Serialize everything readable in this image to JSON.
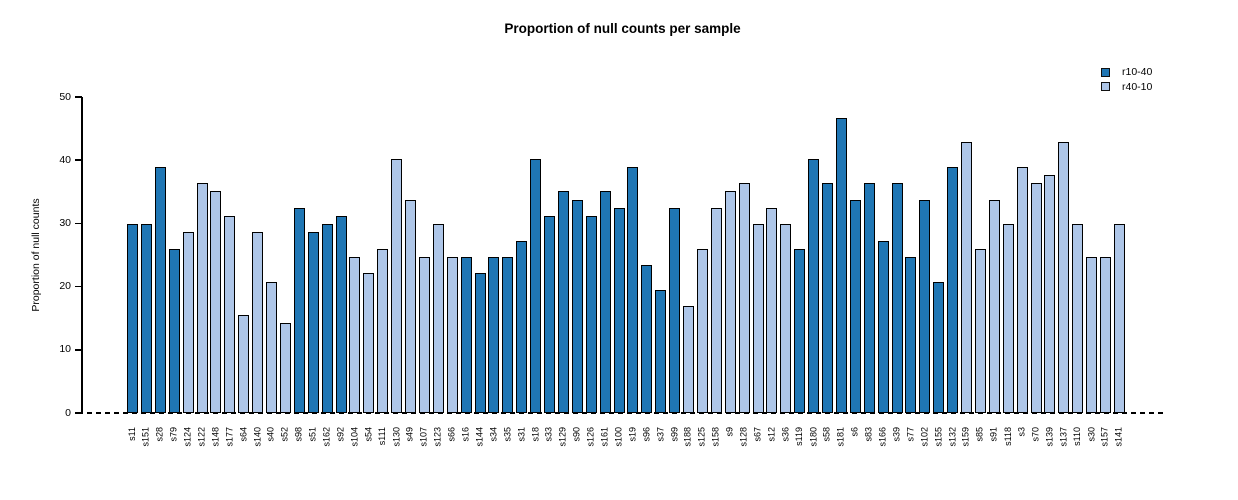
{
  "chart_data": {
    "type": "bar",
    "title": "Proportion of null counts per sample",
    "xlabel": "",
    "ylabel": "Proportion of null counts",
    "ylim": [
      0,
      50
    ],
    "yticks": [
      0,
      10,
      20,
      30,
      40,
      50
    ],
    "grid": false,
    "legend_position": "top-right",
    "zero_line_style": "dashed",
    "legend": [
      {
        "name": "r10-40",
        "color": "#1f76b4"
      },
      {
        "name": "r40-10",
        "color": "#aec6e8"
      }
    ],
    "bars": [
      {
        "label": "s11",
        "value": 29.87,
        "series": "r10-40"
      },
      {
        "label": "s151",
        "value": 29.87,
        "series": "r10-40"
      },
      {
        "label": "s28",
        "value": 38.96,
        "series": "r10-40"
      },
      {
        "label": "s79",
        "value": 25.97,
        "series": "r10-40"
      },
      {
        "label": "s124",
        "value": 28.57,
        "series": "r40-10"
      },
      {
        "label": "s122",
        "value": 36.36,
        "series": "r40-10"
      },
      {
        "label": "s148",
        "value": 35.06,
        "series": "r40-10"
      },
      {
        "label": "s177",
        "value": 31.17,
        "series": "r40-10"
      },
      {
        "label": "s64",
        "value": 15.58,
        "series": "r40-10"
      },
      {
        "label": "s140",
        "value": 28.57,
        "series": "r40-10"
      },
      {
        "label": "s40",
        "value": 20.78,
        "series": "r40-10"
      },
      {
        "label": "s52",
        "value": 14.29,
        "series": "r40-10"
      },
      {
        "label": "s98",
        "value": 32.47,
        "series": "r10-40"
      },
      {
        "label": "s51",
        "value": 28.57,
        "series": "r10-40"
      },
      {
        "label": "s162",
        "value": 29.87,
        "series": "r10-40"
      },
      {
        "label": "s92",
        "value": 31.17,
        "series": "r10-40"
      },
      {
        "label": "s104",
        "value": 24.68,
        "series": "r40-10"
      },
      {
        "label": "s54",
        "value": 22.08,
        "series": "r40-10"
      },
      {
        "label": "s111",
        "value": 25.97,
        "series": "r40-10"
      },
      {
        "label": "s130",
        "value": 40.26,
        "series": "r40-10"
      },
      {
        "label": "s49",
        "value": 33.77,
        "series": "r40-10"
      },
      {
        "label": "s107",
        "value": 24.68,
        "series": "r40-10"
      },
      {
        "label": "s123",
        "value": 29.87,
        "series": "r40-10"
      },
      {
        "label": "s66",
        "value": 24.68,
        "series": "r40-10"
      },
      {
        "label": "s16",
        "value": 24.68,
        "series": "r10-40"
      },
      {
        "label": "s144",
        "value": 22.08,
        "series": "r10-40"
      },
      {
        "label": "s34",
        "value": 24.68,
        "series": "r10-40"
      },
      {
        "label": "s35",
        "value": 24.68,
        "series": "r10-40"
      },
      {
        "label": "s31",
        "value": 27.27,
        "series": "r10-40"
      },
      {
        "label": "s18",
        "value": 40.26,
        "series": "r10-40"
      },
      {
        "label": "s33",
        "value": 31.17,
        "series": "r10-40"
      },
      {
        "label": "s129",
        "value": 35.06,
        "series": "r10-40"
      },
      {
        "label": "s90",
        "value": 33.77,
        "series": "r10-40"
      },
      {
        "label": "s126",
        "value": 31.17,
        "series": "r10-40"
      },
      {
        "label": "s161",
        "value": 35.06,
        "series": "r10-40"
      },
      {
        "label": "s100",
        "value": 32.47,
        "series": "r10-40"
      },
      {
        "label": "s19",
        "value": 38.96,
        "series": "r10-40"
      },
      {
        "label": "s96",
        "value": 23.38,
        "series": "r10-40"
      },
      {
        "label": "s37",
        "value": 19.48,
        "series": "r10-40"
      },
      {
        "label": "s99",
        "value": 32.47,
        "series": "r10-40"
      },
      {
        "label": "s188",
        "value": 16.88,
        "series": "r40-10"
      },
      {
        "label": "s125",
        "value": 25.97,
        "series": "r40-10"
      },
      {
        "label": "s158",
        "value": 32.47,
        "series": "r40-10"
      },
      {
        "label": "s9",
        "value": 35.06,
        "series": "r40-10"
      },
      {
        "label": "s128",
        "value": 36.36,
        "series": "r40-10"
      },
      {
        "label": "s67",
        "value": 29.87,
        "series": "r40-10"
      },
      {
        "label": "s12",
        "value": 32.47,
        "series": "r40-10"
      },
      {
        "label": "s36",
        "value": 29.87,
        "series": "r40-10"
      },
      {
        "label": "s119",
        "value": 25.97,
        "series": "r10-40"
      },
      {
        "label": "s180",
        "value": 40.26,
        "series": "r10-40"
      },
      {
        "label": "s58",
        "value": 36.36,
        "series": "r10-40"
      },
      {
        "label": "s181",
        "value": 46.75,
        "series": "r10-40"
      },
      {
        "label": "s6",
        "value": 33.77,
        "series": "r10-40"
      },
      {
        "label": "s83",
        "value": 36.36,
        "series": "r10-40"
      },
      {
        "label": "s166",
        "value": 27.27,
        "series": "r10-40"
      },
      {
        "label": "s39",
        "value": 36.36,
        "series": "r10-40"
      },
      {
        "label": "s77",
        "value": 24.68,
        "series": "r10-40"
      },
      {
        "label": "s102",
        "value": 33.77,
        "series": "r10-40"
      },
      {
        "label": "s155",
        "value": 20.78,
        "series": "r10-40"
      },
      {
        "label": "s132",
        "value": 38.96,
        "series": "r10-40"
      },
      {
        "label": "s159",
        "value": 42.86,
        "series": "r40-10"
      },
      {
        "label": "s85",
        "value": 25.97,
        "series": "r40-10"
      },
      {
        "label": "s91",
        "value": 33.77,
        "series": "r40-10"
      },
      {
        "label": "s118",
        "value": 29.87,
        "series": "r40-10"
      },
      {
        "label": "s3",
        "value": 38.96,
        "series": "r40-10"
      },
      {
        "label": "s70",
        "value": 36.36,
        "series": "r40-10"
      },
      {
        "label": "s139",
        "value": 37.66,
        "series": "r40-10"
      },
      {
        "label": "s137",
        "value": 42.86,
        "series": "r40-10"
      },
      {
        "label": "s110",
        "value": 29.87,
        "series": "r40-10"
      },
      {
        "label": "s30",
        "value": 24.68,
        "series": "r40-10"
      },
      {
        "label": "s157",
        "value": 24.68,
        "series": "r40-10"
      },
      {
        "label": "s141",
        "value": 29.87,
        "series": "r40-10"
      }
    ]
  }
}
